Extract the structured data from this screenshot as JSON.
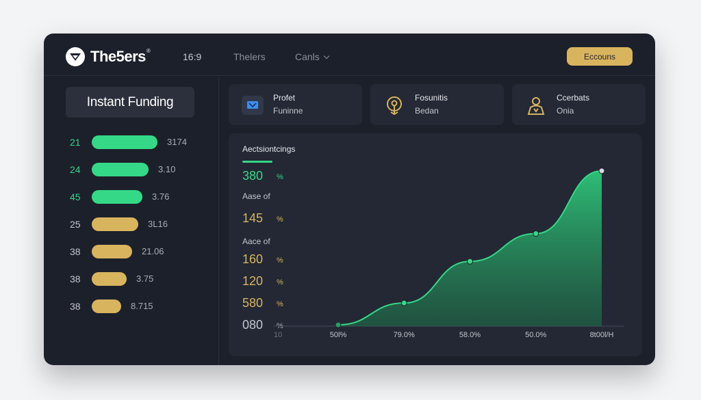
{
  "header": {
    "logo_text": "The5ers",
    "logo_mark": "®",
    "ratio": "16:9",
    "nav": [
      "Thelers",
      "Canls"
    ],
    "account_button": "Eccouns"
  },
  "sidebar": {
    "title": "Instant Funding",
    "rows": [
      {
        "num": "21",
        "value": "3174",
        "color": "#35d887",
        "fill": 0.74
      },
      {
        "num": "24",
        "value": "3.10",
        "color": "#35d887",
        "fill": 0.64
      },
      {
        "num": "45",
        "value": "3.76",
        "color": "#35d887",
        "fill": 0.57
      },
      {
        "num": "25",
        "value": "3L16",
        "color": "#d9b45f",
        "fill": 0.52
      },
      {
        "num": "38",
        "value": "21.06",
        "color": "#d9b45f",
        "fill": 0.45
      },
      {
        "num": "38",
        "value": "3.75",
        "color": "#d9b45f",
        "fill": 0.39
      },
      {
        "num": "38",
        "value": "8.715",
        "color": "#d9b45f",
        "fill": 0.33
      }
    ]
  },
  "cards": [
    {
      "line1": "Profet",
      "line2": "Funinne",
      "icon": "screen-icon"
    },
    {
      "line1": "Fosunitis",
      "line2": "Bedan",
      "icon": "location-pin-icon"
    },
    {
      "line1": "Ccerbats",
      "line2": "Onia",
      "icon": "person-icon"
    }
  ],
  "chart_panel": {
    "title": "Aectsiontcings",
    "labels": [
      {
        "value": "380",
        "unit": "%",
        "color": "#35d887"
      },
      {
        "value": "Aase of",
        "unit": "",
        "color": "#c3c6ce"
      },
      {
        "value": "145",
        "unit": "%",
        "color": "#d9b45f"
      },
      {
        "value": "Aace of",
        "unit": "",
        "color": "#c3c6ce"
      },
      {
        "value": "160",
        "unit": "%",
        "color": "#d9b45f"
      },
      {
        "value": "120",
        "unit": "%",
        "color": "#d9b45f"
      },
      {
        "value": "580",
        "unit": "%",
        "color": "#d9b45f"
      },
      {
        "value": "080",
        "unit": "%",
        "color": "#c3c6ce"
      }
    ],
    "x_origin_label": "10"
  },
  "chart_data": {
    "type": "area",
    "x": [
      "50l%",
      "79.0%",
      "58.0%",
      "50.0%",
      "8t00l/H"
    ],
    "values": [
      2,
      35,
      98,
      140,
      235
    ],
    "ylim": [
      0,
      240
    ],
    "color": "#35d887"
  }
}
